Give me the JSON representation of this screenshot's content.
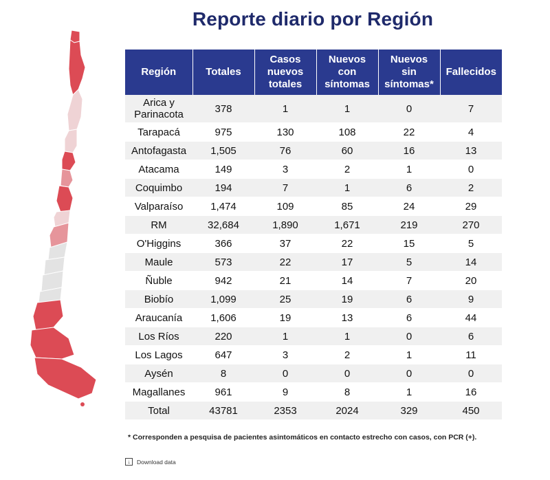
{
  "title": "Reporte diario por Región",
  "headers": {
    "region": "Región",
    "totales": "Totales",
    "casos_nuevos_totales": [
      "Casos",
      "nuevos",
      "totales"
    ],
    "nuevos_con_sintomas": [
      "Nuevos",
      "con",
      "síntomas"
    ],
    "nuevos_sin_sintomas": [
      "Nuevos",
      "sin",
      "síntomas*"
    ],
    "fallecidos": "Fallecidos"
  },
  "rows": [
    {
      "region": "Arica y Parinacota",
      "region_lines": [
        "Arica y",
        "Parinacota"
      ],
      "totales": "378",
      "casos_nuevos_totales": "1",
      "nuevos_con_sintomas": "1",
      "nuevos_sin_sintomas": "0",
      "fallecidos": "7"
    },
    {
      "region": "Tarapacá",
      "totales": "975",
      "casos_nuevos_totales": "130",
      "nuevos_con_sintomas": "108",
      "nuevos_sin_sintomas": "22",
      "fallecidos": "4"
    },
    {
      "region": "Antofagasta",
      "totales": "1,505",
      "casos_nuevos_totales": "76",
      "nuevos_con_sintomas": "60",
      "nuevos_sin_sintomas": "16",
      "fallecidos": "13"
    },
    {
      "region": "Atacama",
      "totales": "149",
      "casos_nuevos_totales": "3",
      "nuevos_con_sintomas": "2",
      "nuevos_sin_sintomas": "1",
      "fallecidos": "0"
    },
    {
      "region": "Coquimbo",
      "totales": "194",
      "casos_nuevos_totales": "7",
      "nuevos_con_sintomas": "1",
      "nuevos_sin_sintomas": "6",
      "fallecidos": "2"
    },
    {
      "region": "Valparaíso",
      "totales": "1,474",
      "casos_nuevos_totales": "109",
      "nuevos_con_sintomas": "85",
      "nuevos_sin_sintomas": "24",
      "fallecidos": "29"
    },
    {
      "region": "RM",
      "totales": "32,684",
      "casos_nuevos_totales": "1,890",
      "nuevos_con_sintomas": "1,671",
      "nuevos_sin_sintomas": "219",
      "fallecidos": "270"
    },
    {
      "region": "O'Higgins",
      "totales": "366",
      "casos_nuevos_totales": "37",
      "nuevos_con_sintomas": "22",
      "nuevos_sin_sintomas": "15",
      "fallecidos": "5"
    },
    {
      "region": "Maule",
      "totales": "573",
      "casos_nuevos_totales": "22",
      "nuevos_con_sintomas": "17",
      "nuevos_sin_sintomas": "5",
      "fallecidos": "14"
    },
    {
      "region": "Ñuble",
      "totales": "942",
      "casos_nuevos_totales": "21",
      "nuevos_con_sintomas": "14",
      "nuevos_sin_sintomas": "7",
      "fallecidos": "20"
    },
    {
      "region": "Biobío",
      "totales": "1,099",
      "casos_nuevos_totales": "25",
      "nuevos_con_sintomas": "19",
      "nuevos_sin_sintomas": "6",
      "fallecidos": "9"
    },
    {
      "region": "Araucanía",
      "totales": "1,606",
      "casos_nuevos_totales": "19",
      "nuevos_con_sintomas": "13",
      "nuevos_sin_sintomas": "6",
      "fallecidos": "44"
    },
    {
      "region": "Los Ríos",
      "totales": "220",
      "casos_nuevos_totales": "1",
      "nuevos_con_sintomas": "1",
      "nuevos_sin_sintomas": "0",
      "fallecidos": "6"
    },
    {
      "region": "Los Lagos",
      "totales": "647",
      "casos_nuevos_totales": "3",
      "nuevos_con_sintomas": "2",
      "nuevos_sin_sintomas": "1",
      "fallecidos": "11"
    },
    {
      "region": "Aysén",
      "totales": "8",
      "casos_nuevos_totales": "0",
      "nuevos_con_sintomas": "0",
      "nuevos_sin_sintomas": "0",
      "fallecidos": "0"
    },
    {
      "region": "Magallanes",
      "totales": "961",
      "casos_nuevos_totales": "9",
      "nuevos_con_sintomas": "8",
      "nuevos_sin_sintomas": "1",
      "fallecidos": "16"
    }
  ],
  "total_row": {
    "region": "Total",
    "totales": "43781",
    "casos_nuevos_totales": "2353",
    "nuevos_con_sintomas": "2024",
    "nuevos_sin_sintomas": "329",
    "fallecidos": "450"
  },
  "footnote": "* Corresponden a pesquisa de pacientes asintomáticos en contacto estrecho con casos, con PCR (+).",
  "download_label": "Download data",
  "download_icon": "download-icon",
  "colors": {
    "title": "#1f2a6b",
    "header_bg": "#2a3a8f",
    "row_alt_bg": "#f0f0f0",
    "map_high": "#dc4b55",
    "map_mid": "#e6959b",
    "map_low": "#efd3d5",
    "map_none": "#e3e3e3"
  }
}
